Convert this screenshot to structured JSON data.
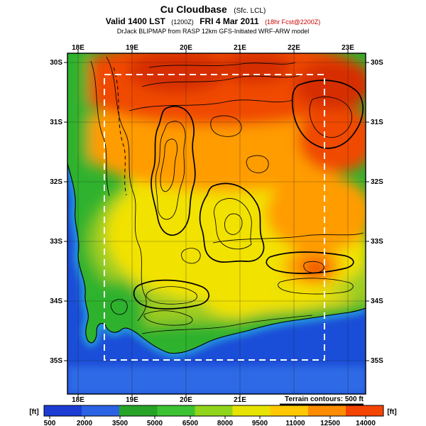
{
  "title": {
    "main": "Cu Cloudbase",
    "qualifier": "(Sfc. LCL)"
  },
  "subtitle": {
    "valid": "Valid 1400 LST",
    "issue_z": "(1200Z)",
    "date": "FRI 4 Mar 2011",
    "forecast": "(18hr Fcst@2200Z)",
    "forecast_color": "#c80000"
  },
  "credit": "DrJack BLIPMAP from RASP 12km GFS-Initiated WRF-ARW model",
  "axes": {
    "top_lon": [
      "18E",
      "19E",
      "20E",
      "21E",
      "22E",
      "23E"
    ],
    "bottom_lon": [
      "18E",
      "19E",
      "20E",
      "21E"
    ],
    "left_lat": [
      "30S",
      "31S",
      "32S",
      "33S",
      "34S",
      "35S"
    ],
    "right_lat": [
      "30S",
      "31S",
      "32S",
      "33S",
      "34S",
      "35S"
    ]
  },
  "legend": {
    "terrain_note": "Terrain contours: 500 ft"
  },
  "colors": {
    "ocean": "#1b4ed8",
    "ocean_shallow": "#2f6ae6",
    "coast_cyan": "#25a5dc",
    "land_green": "#2fb22f",
    "yellow_green": "#9ccc20",
    "yellow": "#f2e200",
    "orange": "#ff9c00",
    "red": "#f04800",
    "deep_red": "#d62e00",
    "contour": "#000000",
    "grid": "#1a1a1a",
    "frame": "#000000",
    "domain_dash": "#ffffff",
    "coastline": "#000000"
  },
  "colorbar": {
    "unit_left": "[ft]",
    "unit_right": "[ft]",
    "ticks": [
      "500",
      "2000",
      "3500",
      "5000",
      "6500",
      "8000",
      "9500",
      "11000",
      "12500",
      "14000"
    ],
    "segment_colors": [
      "#1c3cd4",
      "#2c62e4",
      "#27a427",
      "#3cc232",
      "#90d41c",
      "#e6e400",
      "#ffc800",
      "#ff8c00",
      "#f44400"
    ]
  },
  "chart_data": {
    "type": "heatmap",
    "title": "Cu Cloudbase (Sfc. LCL)",
    "valid": "Valid 1400 LST (1200Z) FRI 4 Mar 2011 (18hr Fcst@2200Z)",
    "model": "DrJack BLIPMAP from RASP 12km GFS-Initiated WRF-ARW model",
    "units": "ft",
    "x_ticks": [
      "18E",
      "19E",
      "20E",
      "21E",
      "22E",
      "23E"
    ],
    "y_ticks": [
      "30S",
      "31S",
      "32S",
      "33S",
      "34S",
      "35S"
    ],
    "colorbar_ticks": [
      500,
      2000,
      3500,
      5000,
      6500,
      8000,
      9500,
      11000,
      12500,
      14000
    ],
    "colorbar_range": [
      500,
      14000
    ],
    "overlay": "Terrain contours: 500 ft",
    "domain_boundary": "white dashed rectangle inset within plot (~18.5E-22.5E, 30.3S-35S)",
    "regions": [
      {
        "area": "ocean west and south of coastline",
        "cloudbase_ft": "500-2000"
      },
      {
        "area": "coastal strip (west and south coasts)",
        "cloudbase_ft": "3500-6500"
      },
      {
        "area": "central interior 32S-34S",
        "cloudbase_ft": "8000-11000"
      },
      {
        "area": "northern interior 30S-31.5S",
        "cloudbase_ft": "11000-14000"
      },
      {
        "area": "northeast pocket near 22E 31.5S",
        "cloudbase_ft": "12500-14000"
      },
      {
        "area": "south-central orange spot near 21.3E 33.6S",
        "cloudbase_ft": "11000-12500"
      }
    ]
  }
}
